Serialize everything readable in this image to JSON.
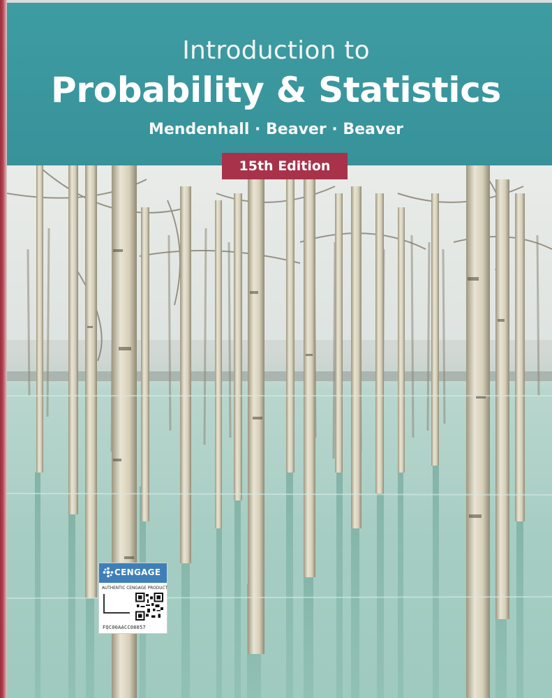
{
  "book": {
    "subtitle": "Introduction to",
    "title": "Probability & Statistics",
    "authors": "Mendenhall · Beaver · Beaver",
    "edition": "15th Edition"
  },
  "sticker": {
    "brand": "CENGAGE",
    "authentic_label": "AUTHENTIC CENGAGE PRODUCT",
    "code": "FQC00AACC08057"
  },
  "colors": {
    "banner": "#3a969d",
    "edition_badge": "#a8324a",
    "water": "#a9cfc6",
    "sticker_header": "#3e7fb8"
  },
  "icons": {
    "brand_logo": "cengage-logo-icon",
    "qr": "qr-code-icon"
  }
}
